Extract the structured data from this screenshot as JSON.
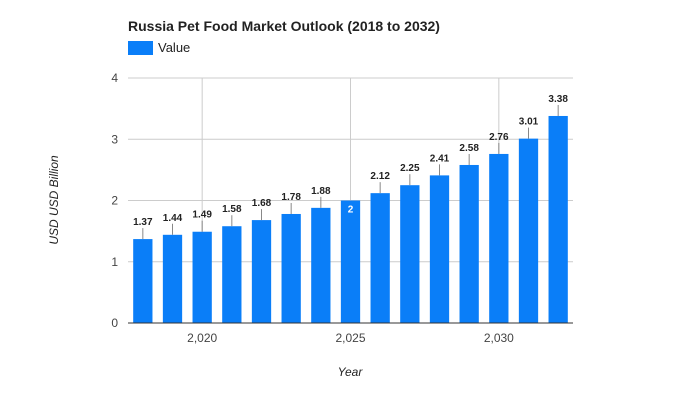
{
  "chart_data": {
    "type": "bar",
    "title": "Russia Pet Food Market Outlook (2018 to 2032)",
    "xlabel": "Year",
    "ylabel": "USD USD Billion",
    "legend": {
      "position": "top-left",
      "entries": [
        "Value"
      ]
    },
    "grid": true,
    "ylim": [
      0,
      4
    ],
    "yticks": [
      "0",
      "1",
      "2",
      "3",
      "4"
    ],
    "xticks": [
      {
        "x": 2020,
        "label": "2,020"
      },
      {
        "x": 2025,
        "label": "2,025"
      },
      {
        "x": 2030,
        "label": "2,030"
      }
    ],
    "categories": [
      2018,
      2019,
      2020,
      2021,
      2022,
      2023,
      2024,
      2025,
      2026,
      2027,
      2028,
      2029,
      2030,
      2031,
      2032
    ],
    "series": [
      {
        "name": "Value",
        "color": "#0a7ef8",
        "values": [
          1.37,
          1.44,
          1.49,
          1.58,
          1.68,
          1.78,
          1.88,
          2,
          2.12,
          2.25,
          2.41,
          2.58,
          2.76,
          3.01,
          3.38
        ],
        "labels": [
          "1.37",
          "1.44",
          "1.49",
          "1.58",
          "1.68",
          "1.78",
          "1.88",
          "2",
          "2.12",
          "2.25",
          "2.41",
          "2.58",
          "2.76",
          "3.01",
          "3.38"
        ]
      }
    ]
  }
}
